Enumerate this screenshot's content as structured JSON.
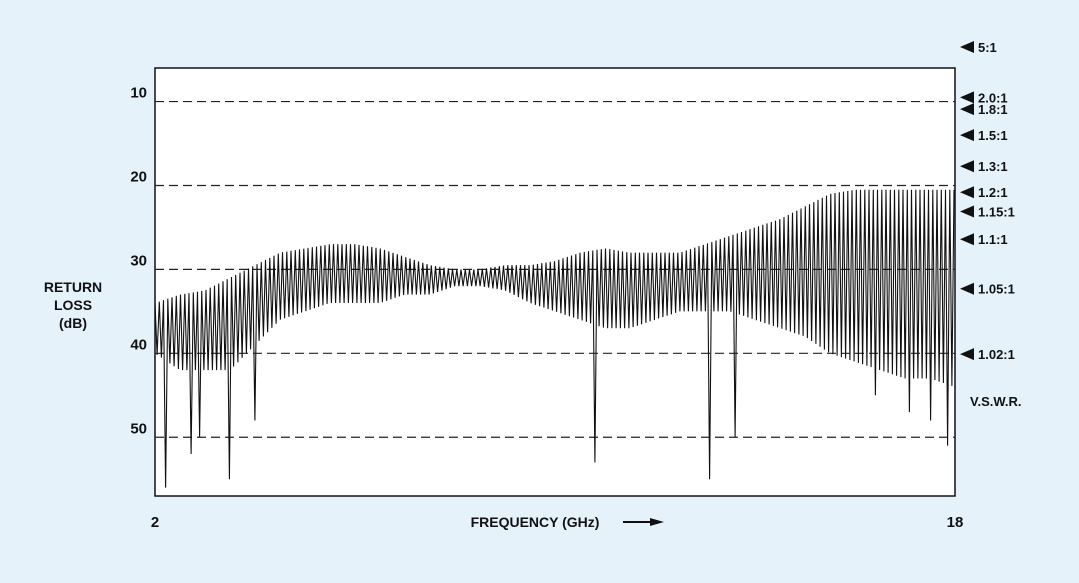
{
  "chart_data": {
    "type": "line",
    "xlabel": "FREQUENCY (GHz)",
    "ylabel": [
      "RETURN",
      "LOSS",
      "(dB)"
    ],
    "xlim": [
      2,
      18
    ],
    "ylim": [
      57,
      6
    ],
    "y_inverted": true,
    "x_ticks": [
      2,
      18
    ],
    "y_ticks": [
      10,
      20,
      30,
      40,
      50
    ],
    "grid": "horizontal-dashed",
    "right_axis_title": "V.S.W.R.",
    "vswr_markers": [
      {
        "label": "5:1",
        "db": 3.5
      },
      {
        "label": "2.0:1",
        "db": 9.5
      },
      {
        "label": "1.8:1",
        "db": 10.9
      },
      {
        "label": "1.5:1",
        "db": 14.0
      },
      {
        "label": "1.3:1",
        "db": 17.7
      },
      {
        "label": "1.2:1",
        "db": 20.8
      },
      {
        "label": "1.15:1",
        "db": 23.1
      },
      {
        "label": "1.1:1",
        "db": 26.4
      },
      {
        "label": "1.05:1",
        "db": 32.3
      },
      {
        "label": "1.02:1",
        "db": 40.1
      }
    ],
    "series": [
      {
        "color": "#111111",
        "upper_envelope": [
          [
            2.0,
            34
          ],
          [
            2.5,
            33
          ],
          [
            3.0,
            32.5
          ],
          [
            3.5,
            31
          ],
          [
            4.0,
            29.5
          ],
          [
            4.5,
            28
          ],
          [
            5.0,
            27.5
          ],
          [
            5.5,
            27
          ],
          [
            6.0,
            27
          ],
          [
            6.5,
            27.5
          ],
          [
            7.0,
            28.5
          ],
          [
            7.5,
            29.5
          ],
          [
            8.0,
            30
          ],
          [
            8.5,
            30
          ],
          [
            9.0,
            29.5
          ],
          [
            9.5,
            29.5
          ],
          [
            10.0,
            29
          ],
          [
            10.5,
            28
          ],
          [
            11.0,
            27.5
          ],
          [
            11.5,
            28
          ],
          [
            12.0,
            28
          ],
          [
            12.5,
            28
          ],
          [
            13.0,
            27
          ],
          [
            13.5,
            26
          ],
          [
            14.0,
            25
          ],
          [
            14.5,
            24
          ],
          [
            15.0,
            22.5
          ],
          [
            15.5,
            21
          ],
          [
            16.0,
            20.5
          ],
          [
            16.5,
            20.5
          ],
          [
            17.0,
            20.5
          ],
          [
            17.5,
            20.5
          ],
          [
            18.0,
            20.5
          ]
        ],
        "lower_envelope": [
          [
            2.0,
            40
          ],
          [
            2.5,
            42
          ],
          [
            3.0,
            42
          ],
          [
            3.5,
            42
          ],
          [
            4.0,
            39
          ],
          [
            4.5,
            36
          ],
          [
            5.0,
            35
          ],
          [
            5.5,
            34
          ],
          [
            6.0,
            34
          ],
          [
            6.5,
            34
          ],
          [
            7.0,
            33
          ],
          [
            7.5,
            33
          ],
          [
            8.0,
            32
          ],
          [
            8.5,
            32
          ],
          [
            9.0,
            32.5
          ],
          [
            9.5,
            34
          ],
          [
            10.0,
            35
          ],
          [
            10.5,
            36
          ],
          [
            11.0,
            37
          ],
          [
            11.5,
            37
          ],
          [
            12.0,
            36
          ],
          [
            12.5,
            35
          ],
          [
            13.0,
            35
          ],
          [
            13.5,
            35
          ],
          [
            14.0,
            36
          ],
          [
            14.5,
            37
          ],
          [
            15.0,
            38
          ],
          [
            15.5,
            40
          ],
          [
            16.0,
            41
          ],
          [
            16.5,
            42
          ],
          [
            17.0,
            43
          ],
          [
            17.5,
            43
          ],
          [
            18.0,
            44
          ]
        ],
        "deep_nulls": [
          [
            2.2,
            56
          ],
          [
            2.35,
            55
          ],
          [
            2.7,
            52
          ],
          [
            2.9,
            50
          ],
          [
            3.5,
            55
          ],
          [
            3.7,
            53
          ],
          [
            4.0,
            48
          ],
          [
            4.9,
            46
          ],
          [
            10.8,
            53
          ],
          [
            12.7,
            55
          ],
          [
            13.1,
            55
          ],
          [
            13.3,
            54
          ],
          [
            13.6,
            50
          ],
          [
            16.4,
            45
          ],
          [
            16.8,
            48
          ],
          [
            17.1,
            47
          ],
          [
            17.5,
            48
          ],
          [
            17.85,
            51
          ],
          [
            18.0,
            47
          ]
        ],
        "null_spacing_ghz": 0.085
      }
    ]
  }
}
